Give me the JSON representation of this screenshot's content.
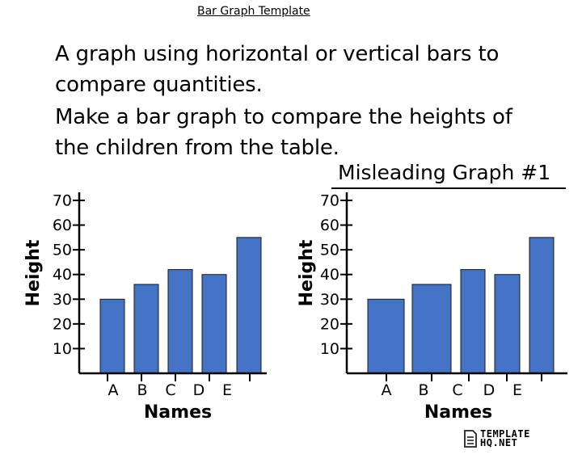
{
  "header": {
    "title": "Bar Graph Template"
  },
  "intro": {
    "line1": "A graph using horizontal or vertical bars to",
    "line2": "compare quantities.",
    "line3": "Make a bar graph to compare the heights of",
    "line4": "the children from the table."
  },
  "logo": {
    "line1": "TEMPLATE",
    "line2": "HQ.NET"
  },
  "colors": {
    "bar": "#4472C4",
    "axis": "#000000"
  },
  "chart_data": [
    {
      "type": "bar",
      "title": "",
      "xlabel": "Names",
      "ylabel": "Height",
      "categories": [
        "A",
        "B",
        "C",
        "D",
        "E"
      ],
      "values": [
        30,
        36,
        42,
        40,
        55
      ],
      "yticks": [
        "10",
        "20",
        "30",
        "40",
        "50",
        "60",
        "70"
      ],
      "ylim": [
        0,
        70
      ],
      "grid": false,
      "legend": "none"
    },
    {
      "type": "bar",
      "title": "Misleading Graph #1",
      "xlabel": "Names",
      "ylabel": "Height",
      "categories": [
        "A",
        "B",
        "C",
        "D",
        "E"
      ],
      "values": [
        30,
        36,
        42,
        40,
        55
      ],
      "yticks": [
        "10",
        "20",
        "30",
        "40",
        "50",
        "60",
        "70"
      ],
      "ylim": [
        0,
        70
      ],
      "grid": false,
      "legend": "none"
    }
  ]
}
